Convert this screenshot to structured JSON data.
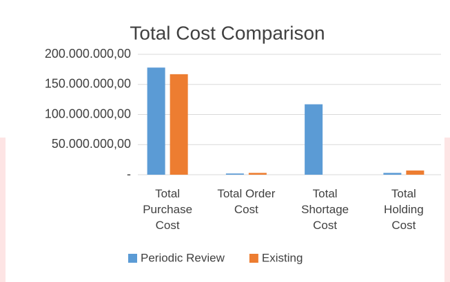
{
  "chart_data": {
    "type": "bar",
    "title": "Total Cost Comparison",
    "categories": [
      "Total Purchase Cost",
      "Total Order Cost",
      "Total Shortage Cost",
      "Total Holding Cost"
    ],
    "series": [
      {
        "name": "Periodic Review",
        "color": "#5b9bd5",
        "values": [
          178000000,
          2000000,
          117000000,
          3000000
        ]
      },
      {
        "name": "Existing",
        "color": "#ed7d31",
        "values": [
          167000000,
          3000000,
          0,
          7000000
        ]
      }
    ],
    "ylim": [
      0,
      200000000
    ],
    "yticks": [
      {
        "value": 0,
        "label": "-"
      },
      {
        "value": 50000000,
        "label": "50.000.000,00"
      },
      {
        "value": 100000000,
        "label": "100.000.000,00"
      },
      {
        "value": 150000000,
        "label": "150.000.000,00"
      },
      {
        "value": 200000000,
        "label": "200.000.000,00"
      }
    ],
    "grid": true,
    "legend": "bottom"
  }
}
